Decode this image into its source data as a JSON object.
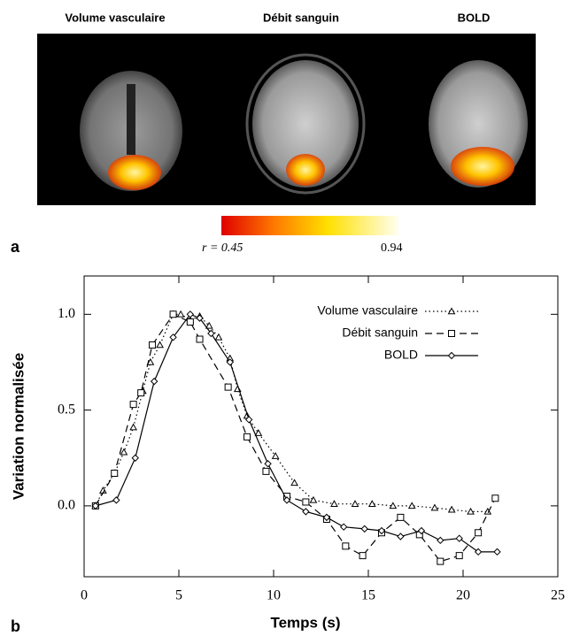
{
  "figure_a": {
    "panel_titles": [
      "Volume vasculaire",
      "Débit sanguin",
      "BOLD"
    ],
    "colorbar_labels": [
      "r = 0.45",
      "0.94"
    ],
    "panel_label": "a"
  },
  "chart_data": {
    "type": "line",
    "panel_label": "b",
    "x_label": "Temps (s)",
    "y_label": "Variation normalisée",
    "xlim": [
      0,
      25
    ],
    "ylim": [
      -0.37,
      1.2
    ],
    "xticks": [
      0,
      5,
      10,
      15,
      20,
      25
    ],
    "yticks": [
      {
        "value": 0,
        "label": "0.0"
      },
      0.5,
      {
        "value": 1,
        "label": "1.0"
      }
    ],
    "legend": "upper right",
    "series": [
      {
        "name": "Volume vasculaire",
        "color": "#000000",
        "marker": "triangle",
        "dash": "dotted",
        "x": [
          0.6,
          1.0,
          1.6,
          2.1,
          2.6,
          3.1,
          3.5,
          4.0,
          4.7,
          5.1,
          5.6,
          6.1,
          6.6,
          7.1,
          7.7,
          8.1,
          8.6,
          9.2,
          10.1,
          11.1,
          12.1,
          13.2,
          14.3,
          15.2,
          16.3,
          17.3,
          18.5,
          19.4,
          20.4,
          21.3
        ],
        "values": [
          0.0,
          0.08,
          0.17,
          0.28,
          0.41,
          0.6,
          0.75,
          0.84,
          1.0,
          1.0,
          0.97,
          0.99,
          0.94,
          0.88,
          0.77,
          0.61,
          0.47,
          0.38,
          0.26,
          0.12,
          0.03,
          0.01,
          0.01,
          0.01,
          0.0,
          0.0,
          -0.01,
          -0.02,
          -0.03,
          -0.03
        ]
      },
      {
        "name": "Débit sanguin",
        "color": "#000000",
        "marker": "square",
        "dash": "dashed",
        "x": [
          0.6,
          1.6,
          2.6,
          3.0,
          3.6,
          4.7,
          5.6,
          6.1,
          7.6,
          8.6,
          9.6,
          10.7,
          11.7,
          12.8,
          13.8,
          14.7,
          15.7,
          16.7,
          17.7,
          18.8,
          19.8,
          20.8,
          21.7
        ],
        "values": [
          0.0,
          0.17,
          0.53,
          0.59,
          0.84,
          1.0,
          0.96,
          0.87,
          0.62,
          0.36,
          0.18,
          0.05,
          0.02,
          -0.07,
          -0.21,
          -0.26,
          -0.14,
          -0.06,
          -0.15,
          -0.29,
          -0.26,
          -0.14,
          0.04
        ]
      },
      {
        "name": "BOLD",
        "color": "#000000",
        "marker": "diamond",
        "dash": "solid",
        "x": [
          0.6,
          1.7,
          2.7,
          3.7,
          4.7,
          5.6,
          6.1,
          6.7,
          7.7,
          8.7,
          9.7,
          10.7,
          11.7,
          12.8,
          13.7,
          14.8,
          15.7,
          16.7,
          17.8,
          18.8,
          19.8,
          20.8,
          21.8
        ],
        "values": [
          0.0,
          0.03,
          0.25,
          0.65,
          0.88,
          1.0,
          0.98,
          0.9,
          0.75,
          0.45,
          0.22,
          0.03,
          -0.03,
          -0.06,
          -0.11,
          -0.12,
          -0.13,
          -0.16,
          -0.13,
          -0.18,
          -0.17,
          -0.24,
          -0.24
        ]
      }
    ]
  }
}
